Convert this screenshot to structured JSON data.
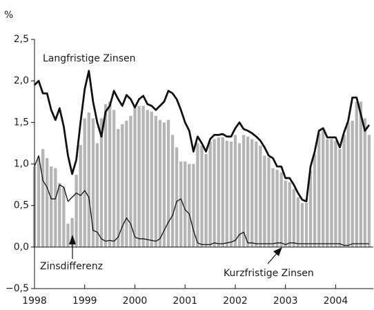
{
  "chart_data": {
    "type": "bar",
    "y_unit": "%",
    "x": [
      1998,
      1998.083,
      1998.167,
      1998.25,
      1998.333,
      1998.417,
      1998.5,
      1998.583,
      1998.667,
      1998.75,
      1998.833,
      1998.917,
      1999,
      1999.083,
      1999.167,
      1999.25,
      1999.333,
      1999.417,
      1999.5,
      1999.583,
      1999.667,
      1999.75,
      1999.833,
      1999.917,
      2000,
      2000.083,
      2000.167,
      2000.25,
      2000.333,
      2000.417,
      2000.5,
      2000.583,
      2000.667,
      2000.75,
      2000.833,
      2000.917,
      2001,
      2001.083,
      2001.167,
      2001.25,
      2001.333,
      2001.417,
      2001.5,
      2001.583,
      2001.667,
      2001.75,
      2001.833,
      2001.917,
      2002,
      2002.083,
      2002.167,
      2002.25,
      2002.333,
      2002.417,
      2002.5,
      2002.583,
      2002.667,
      2002.75,
      2002.833,
      2002.917,
      2003,
      2003.083,
      2003.167,
      2003.25,
      2003.333,
      2003.417,
      2003.5,
      2003.583,
      2003.667,
      2003.75,
      2003.833,
      2003.917,
      2004,
      2004.083,
      2004.167,
      2004.25,
      2004.333,
      2004.417,
      2004.5,
      2004.583,
      2004.667
    ],
    "series": [
      {
        "name": "Zinsdifferenz",
        "type": "bar",
        "color": "#b5b5b5",
        "values": [
          0.97,
          1.08,
          1.18,
          1.07,
          0.97,
          0.95,
          0.77,
          0.72,
          0.28,
          0.35,
          0.87,
          1.23,
          1.55,
          1.62,
          1.55,
          1.25,
          1.55,
          1.72,
          1.75,
          1.65,
          1.42,
          1.48,
          1.52,
          1.58,
          1.68,
          1.7,
          1.7,
          1.65,
          1.63,
          1.58,
          1.53,
          1.5,
          1.53,
          1.35,
          1.2,
          1.03,
          1.03,
          1.0,
          1.0,
          1.25,
          1.22,
          1.12,
          1.27,
          1.3,
          1.32,
          1.32,
          1.28,
          1.27,
          1.35,
          1.25,
          1.35,
          1.33,
          1.3,
          1.27,
          1.22,
          1.1,
          1.08,
          0.95,
          0.93,
          0.9,
          0.8,
          0.78,
          0.7,
          0.6,
          0.53,
          0.53,
          0.92,
          1.12,
          1.37,
          1.4,
          1.3,
          1.3,
          1.28,
          1.18,
          1.35,
          1.5,
          1.52,
          1.75,
          1.75,
          1.55,
          1.35
        ]
      },
      {
        "name": "Langfristige Zinsen",
        "type": "line",
        "color": "#111111",
        "line_width": 2.8,
        "values": [
          1.95,
          2.0,
          1.85,
          1.85,
          1.65,
          1.53,
          1.67,
          1.45,
          1.1,
          0.88,
          1.05,
          1.5,
          1.9,
          2.12,
          1.75,
          1.5,
          1.33,
          1.63,
          1.7,
          1.88,
          1.78,
          1.7,
          1.83,
          1.78,
          1.68,
          1.78,
          1.82,
          1.72,
          1.7,
          1.65,
          1.7,
          1.75,
          1.88,
          1.85,
          1.78,
          1.65,
          1.5,
          1.4,
          1.15,
          1.33,
          1.25,
          1.15,
          1.3,
          1.35,
          1.35,
          1.36,
          1.33,
          1.33,
          1.43,
          1.5,
          1.42,
          1.4,
          1.37,
          1.33,
          1.28,
          1.2,
          1.1,
          1.07,
          0.97,
          0.97,
          0.83,
          0.83,
          0.75,
          0.65,
          0.57,
          0.55,
          0.97,
          1.15,
          1.4,
          1.43,
          1.32,
          1.32,
          1.32,
          1.2,
          1.38,
          1.52,
          1.8,
          1.8,
          1.6,
          1.4,
          1.47
        ]
      },
      {
        "name": "Kurzfristige Zinsen",
        "type": "line",
        "color": "#111111",
        "line_width": 1.3,
        "values": [
          0.97,
          1.1,
          0.8,
          0.72,
          0.58,
          0.58,
          0.75,
          0.72,
          0.55,
          0.6,
          0.65,
          0.62,
          0.68,
          0.6,
          0.2,
          0.18,
          0.1,
          0.07,
          0.08,
          0.07,
          0.12,
          0.25,
          0.35,
          0.28,
          0.12,
          0.1,
          0.1,
          0.09,
          0.08,
          0.07,
          0.1,
          0.2,
          0.3,
          0.38,
          0.55,
          0.58,
          0.45,
          0.4,
          0.2,
          0.05,
          0.03,
          0.03,
          0.03,
          0.05,
          0.04,
          0.04,
          0.05,
          0.06,
          0.08,
          0.15,
          0.18,
          0.05,
          0.05,
          0.04,
          0.04,
          0.04,
          0.04,
          0.04,
          0.05,
          0.05,
          0.03,
          0.05,
          0.05,
          0.04,
          0.04,
          0.04,
          0.04,
          0.04,
          0.04,
          0.04,
          0.04,
          0.04,
          0.04,
          0.04,
          0.02,
          0.02,
          0.04,
          0.04,
          0.04,
          0.04,
          0.04
        ]
      }
    ],
    "xlim": [
      1998,
      2004.75
    ],
    "xticks": [
      1998,
      1999,
      2000,
      2001,
      2002,
      2003,
      2004
    ],
    "ylim": [
      -0.5,
      2.5
    ],
    "yticks": [
      {
        "value": -0.5,
        "label": "−0,5"
      },
      {
        "value": 0,
        "label": "0,0"
      },
      {
        "value": 0.5,
        "label": "0,5"
      },
      {
        "value": 1,
        "label": "1,0"
      },
      {
        "value": 1.5,
        "label": "1,5"
      },
      {
        "value": 2,
        "label": "2,0"
      },
      {
        "value": 2.5,
        "label": "2,5"
      }
    ],
    "grid": false
  }
}
